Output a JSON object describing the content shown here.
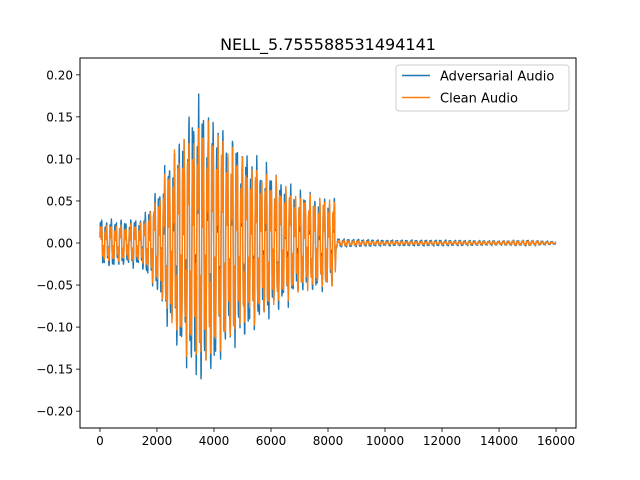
{
  "chart_data": {
    "type": "line",
    "title": "NELL_5.755588531494141",
    "xlabel": "",
    "ylabel": "",
    "xlim": [
      -700,
      16700
    ],
    "ylim": [
      -0.22,
      0.22
    ],
    "x_ticks": [
      0,
      2000,
      4000,
      6000,
      8000,
      10000,
      12000,
      14000,
      16000
    ],
    "y_ticks": [
      -0.2,
      -0.15,
      -0.1,
      -0.05,
      0.0,
      0.05,
      0.1,
      0.15,
      0.2
    ],
    "x_tick_labels": [
      "0",
      "2000",
      "4000",
      "6000",
      "8000",
      "10000",
      "12000",
      "14000",
      "16000"
    ],
    "y_tick_labels": [
      "−0.20",
      "−0.15",
      "−0.10",
      "−0.05",
      "0.00",
      "0.05",
      "0.10",
      "0.15",
      "0.20"
    ],
    "legend_position": "top-right",
    "grid": false,
    "series": [
      {
        "name": "Adversarial Audio",
        "color": "#1f77b4",
        "envelope": {
          "x": [
            0,
            200,
            1000,
            1500,
            2000,
            2500,
            3000,
            3400,
            3800,
            4400,
            5000,
            6000,
            7000,
            8000,
            8240,
            8300,
            9000,
            10000,
            12000,
            14000,
            15000,
            16000
          ],
          "amplitude": [
            0.035,
            0.032,
            0.031,
            0.035,
            0.07,
            0.125,
            0.16,
            0.2,
            0.18,
            0.15,
            0.13,
            0.1,
            0.07,
            0.062,
            0.062,
            0.006,
            0.005,
            0.004,
            0.004,
            0.003,
            0.004,
            0.002
          ]
        }
      },
      {
        "name": "Clean Audio",
        "color": "#ff7f0e",
        "envelope": {
          "x": [
            0,
            200,
            1000,
            1500,
            2000,
            2500,
            3000,
            3400,
            3800,
            4400,
            5000,
            6000,
            7000,
            8000,
            8240,
            8300,
            9000,
            10000,
            12000,
            14000,
            15000,
            16000
          ],
          "amplitude": [
            0.025,
            0.025,
            0.024,
            0.028,
            0.06,
            0.115,
            0.145,
            0.16,
            0.165,
            0.14,
            0.115,
            0.09,
            0.065,
            0.06,
            0.06,
            0.004,
            0.003,
            0.002,
            0.002,
            0.002,
            0.003,
            0.001
          ]
        }
      }
    ]
  }
}
